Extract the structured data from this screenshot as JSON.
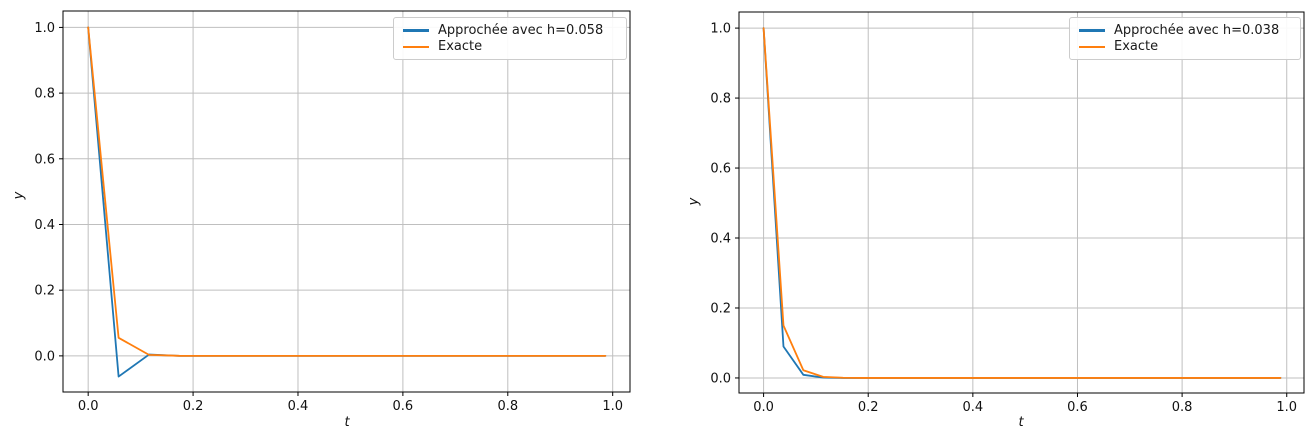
{
  "figure": {
    "background": "#ffffff",
    "grid_color": "#bfbfbf",
    "spine_color": "#000000",
    "text_color": "#111111"
  },
  "chart_data": [
    {
      "type": "line",
      "title": "",
      "xlabel": "t",
      "ylabel": "y",
      "xlim": [
        -0.048,
        1.033
      ],
      "ylim": [
        -0.11,
        1.05
      ],
      "xticks": [
        0.0,
        0.2,
        0.4,
        0.6,
        0.8,
        1.0
      ],
      "yticks": [
        0.0,
        0.2,
        0.4,
        0.6,
        0.8,
        1.0
      ],
      "grid": true,
      "legend_loc": "upper right",
      "series": [
        {
          "name": "Approchée avec h=0.058",
          "color": "#1f77b4",
          "x": [
            0,
            0.058,
            0.116,
            0.174,
            0.232,
            0.29,
            0.348,
            0.406,
            0.464,
            0.522,
            0.58,
            0.638,
            0.696,
            0.754,
            0.812,
            0.87,
            0.928,
            0.986
          ],
          "y": [
            1.0,
            -0.063,
            0.004,
            0.0,
            0.0,
            0.0,
            0.0,
            0.0,
            0.0,
            0.0,
            0.0,
            0.0,
            0.0,
            0.0,
            0.0,
            0.0,
            0.0,
            0.0
          ]
        },
        {
          "name": "Exacte",
          "color": "#ff7f0e",
          "x": [
            0,
            0.058,
            0.116,
            0.174,
            0.232,
            0.29,
            0.348,
            0.406,
            0.464,
            0.522,
            0.58,
            0.638,
            0.696,
            0.754,
            0.812,
            0.87,
            0.928,
            0.986
          ],
          "y": [
            1.0,
            0.055,
            0.003,
            0.0002,
            0.0,
            0.0,
            0.0,
            0.0,
            0.0,
            0.0,
            0.0,
            0.0,
            0.0,
            0.0,
            0.0,
            0.0,
            0.0,
            0.0
          ]
        }
      ]
    },
    {
      "type": "line",
      "title": "",
      "xlabel": "t",
      "ylabel": "y",
      "xlim": [
        -0.047,
        1.033
      ],
      "ylim": [
        -0.043,
        1.046
      ],
      "xticks": [
        0.0,
        0.2,
        0.4,
        0.6,
        0.8,
        1.0
      ],
      "yticks": [
        0.0,
        0.2,
        0.4,
        0.6,
        0.8,
        1.0
      ],
      "grid": true,
      "legend_loc": "upper right",
      "series": [
        {
          "name": "Approchée avec h=0.038",
          "color": "#1f77b4",
          "x": [
            0,
            0.038,
            0.076,
            0.114,
            0.152,
            0.19,
            0.228,
            0.266,
            0.304,
            0.342,
            0.38,
            0.418,
            0.456,
            0.494,
            0.532,
            0.57,
            0.608,
            0.646,
            0.684,
            0.722,
            0.76,
            0.798,
            0.836,
            0.874,
            0.912,
            0.95,
            0.988
          ],
          "y": [
            1.0,
            0.09,
            0.009,
            0.001,
            0.0,
            0.0,
            0.0,
            0.0,
            0.0,
            0.0,
            0.0,
            0.0,
            0.0,
            0.0,
            0.0,
            0.0,
            0.0,
            0.0,
            0.0,
            0.0,
            0.0,
            0.0,
            0.0,
            0.0,
            0.0,
            0.0,
            0.0
          ]
        },
        {
          "name": "Exacte",
          "color": "#ff7f0e",
          "x": [
            0,
            0.038,
            0.076,
            0.114,
            0.152,
            0.19,
            0.228,
            0.266,
            0.304,
            0.342,
            0.38,
            0.418,
            0.456,
            0.494,
            0.532,
            0.57,
            0.608,
            0.646,
            0.684,
            0.722,
            0.76,
            0.798,
            0.836,
            0.874,
            0.912,
            0.95,
            0.988
          ],
          "y": [
            1.0,
            0.15,
            0.022,
            0.003,
            0.0005,
            0.0,
            0.0,
            0.0,
            0.0,
            0.0,
            0.0,
            0.0,
            0.0,
            0.0,
            0.0,
            0.0,
            0.0,
            0.0,
            0.0,
            0.0,
            0.0,
            0.0,
            0.0,
            0.0,
            0.0,
            0.0,
            0.0
          ]
        }
      ]
    }
  ]
}
